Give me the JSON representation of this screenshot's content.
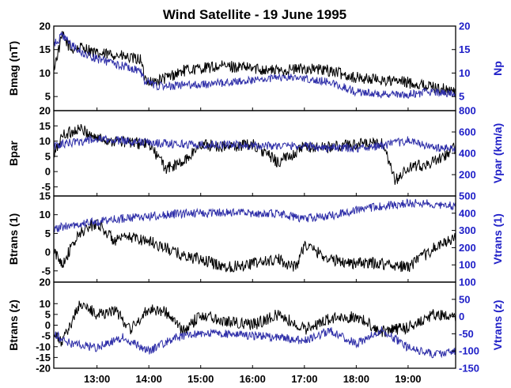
{
  "chart_data": [
    {
      "type": "line",
      "title": "Wind Satellite - 19 June 1995",
      "x_range": [
        "12:10",
        "19:55"
      ],
      "x_ticks": [
        "13:00",
        "14:00",
        "15:00",
        "16:00",
        "17:00",
        "18:00",
        "19:00"
      ],
      "left_axis": {
        "label": "Bmag (nT)",
        "ylim": [
          2,
          20
        ],
        "ticks": [
          "20",
          "15",
          "10",
          "5"
        ]
      },
      "right_axis": {
        "label": "Np",
        "ylim": [
          2,
          20
        ],
        "ticks": [
          "20",
          "15",
          "10",
          "5"
        ]
      },
      "series": [
        {
          "name": "Bmag (nT)",
          "axis": "left",
          "color": "#000000",
          "x": [
            "12:10",
            "12:20",
            "12:30",
            "12:45",
            "13:00",
            "13:20",
            "13:40",
            "13:50",
            "13:55",
            "14:05",
            "14:20",
            "14:40",
            "15:00",
            "15:30",
            "16:00",
            "16:30",
            "17:00",
            "17:30",
            "18:00",
            "18:30",
            "19:00",
            "19:30",
            "19:55"
          ],
          "values": [
            11,
            18,
            15,
            15.5,
            14,
            14,
            13,
            13,
            9,
            8,
            9,
            10.5,
            11,
            11.5,
            11,
            10.5,
            11,
            10.5,
            9,
            8.5,
            8,
            7,
            6
          ]
        },
        {
          "name": "Np",
          "axis": "right",
          "color": "#2e2ea8",
          "x": [
            "12:10",
            "12:20",
            "12:30",
            "12:45",
            "13:00",
            "13:20",
            "13:40",
            "13:50",
            "13:55",
            "14:05",
            "14:20",
            "14:40",
            "15:00",
            "15:30",
            "16:00",
            "16:30",
            "17:00",
            "17:30",
            "18:00",
            "18:30",
            "19:00",
            "19:30",
            "19:55"
          ],
          "values": [
            16,
            18,
            16,
            14,
            13,
            12,
            11,
            10.5,
            8.5,
            7.5,
            7,
            7.5,
            7.5,
            8,
            8.5,
            9,
            9,
            8,
            6,
            5.5,
            5.5,
            6,
            5.5
          ]
        }
      ]
    },
    {
      "type": "line",
      "left_axis": {
        "label": "Bpar",
        "ylim": [
          -8,
          20
        ],
        "ticks": [
          "20",
          "15",
          "10",
          "5",
          "0",
          "-5"
        ]
      },
      "right_axis": {
        "label": "Vpar (km/a)",
        "ylim": [
          0,
          800
        ],
        "ticks": [
          "800",
          "600",
          "400",
          "200"
        ]
      },
      "series": [
        {
          "name": "Bpar",
          "axis": "left",
          "color": "#000000",
          "x": [
            "12:10",
            "12:20",
            "12:40",
            "13:00",
            "13:20",
            "13:40",
            "14:00",
            "14:20",
            "14:40",
            "15:00",
            "15:30",
            "16:00",
            "16:30",
            "17:00",
            "17:30",
            "18:00",
            "18:30",
            "18:45",
            "19:00",
            "19:30",
            "19:55"
          ],
          "values": [
            5,
            12,
            14,
            11,
            10,
            9.5,
            9,
            1,
            3,
            9,
            8,
            9,
            3,
            8,
            8,
            9,
            9,
            -3,
            1,
            3,
            8
          ]
        },
        {
          "name": "Vpar (km/a)",
          "axis": "right",
          "color": "#2e2ea8",
          "x": [
            "12:10",
            "12:30",
            "13:00",
            "13:30",
            "14:00",
            "14:30",
            "15:00",
            "15:30",
            "16:00",
            "16:30",
            "17:00",
            "17:30",
            "18:00",
            "18:30",
            "19:00",
            "19:30",
            "19:55"
          ],
          "values": [
            470,
            500,
            530,
            520,
            500,
            490,
            480,
            480,
            475,
            470,
            470,
            450,
            450,
            470,
            520,
            450,
            440
          ]
        }
      ]
    },
    {
      "type": "line",
      "left_axis": {
        "label": "Btrans (1)",
        "ylim": [
          -8,
          15
        ],
        "ticks": [
          "15",
          "10",
          "5",
          "0",
          "-5"
        ]
      },
      "right_axis": {
        "label": "Vtrans (1)",
        "ylim": [
          0,
          500
        ],
        "ticks": [
          "500",
          "400",
          "300",
          "200",
          "100"
        ]
      },
      "series": [
        {
          "name": "Btrans (1)",
          "axis": "left",
          "color": "#000000",
          "x": [
            "12:10",
            "12:20",
            "12:40",
            "13:00",
            "13:20",
            "13:40",
            "14:00",
            "14:20",
            "14:40",
            "15:00",
            "15:30",
            "16:00",
            "16:30",
            "16:50",
            "17:00",
            "17:30",
            "18:00",
            "18:30",
            "19:00",
            "19:30",
            "19:55"
          ],
          "values": [
            0,
            -3,
            5,
            8,
            3,
            4,
            3,
            1,
            -1,
            -2,
            -4,
            -3,
            -2,
            -4,
            2,
            -2,
            -3,
            -3,
            -4,
            1,
            4
          ]
        },
        {
          "name": "Vtrans (1)",
          "axis": "right",
          "color": "#2e2ea8",
          "x": [
            "12:10",
            "12:30",
            "13:00",
            "13:30",
            "14:00",
            "14:30",
            "15:00",
            "15:30",
            "16:00",
            "16:30",
            "17:00",
            "17:30",
            "18:00",
            "18:30",
            "19:00",
            "19:30",
            "19:55"
          ],
          "values": [
            310,
            330,
            350,
            370,
            380,
            395,
            400,
            405,
            400,
            395,
            370,
            385,
            420,
            440,
            460,
            455,
            440
          ]
        }
      ]
    },
    {
      "type": "line",
      "left_axis": {
        "label": "Btrans (z)",
        "ylim": [
          -20,
          20
        ],
        "ticks": [
          "20",
          "10",
          "5",
          "0",
          "-5",
          "-10",
          "-15",
          "-20"
        ]
      },
      "right_axis": {
        "label": "Vtrans (z)",
        "ylim": [
          -150,
          100
        ],
        "ticks": [
          "100",
          "50",
          "0",
          "-50",
          "-100",
          "-150"
        ]
      },
      "series": [
        {
          "name": "Btrans (z)",
          "axis": "left",
          "color": "#000000",
          "x": [
            "12:10",
            "12:20",
            "12:40",
            "13:00",
            "13:20",
            "13:40",
            "14:00",
            "14:20",
            "14:40",
            "15:00",
            "15:30",
            "16:00",
            "16:30",
            "17:00",
            "17:30",
            "18:00",
            "18:30",
            "19:00",
            "19:30",
            "19:55"
          ],
          "values": [
            -5,
            -8,
            10,
            5,
            7,
            -2,
            8,
            6,
            -3,
            5,
            2,
            0,
            5,
            -2,
            3,
            4,
            -3,
            -1,
            5,
            3
          ]
        },
        {
          "name": "Vtrans (z)",
          "axis": "right",
          "color": "#2e2ea8",
          "x": [
            "12:10",
            "12:30",
            "13:00",
            "13:30",
            "14:00",
            "14:30",
            "15:00",
            "15:30",
            "16:00",
            "16:30",
            "17:00",
            "17:30",
            "18:00",
            "18:30",
            "19:00",
            "19:30",
            "19:55"
          ],
          "values": [
            -50,
            -80,
            -90,
            -60,
            -100,
            -60,
            -50,
            -50,
            -55,
            -60,
            -70,
            -40,
            -80,
            -40,
            -90,
            -110,
            -100
          ]
        }
      ]
    }
  ]
}
